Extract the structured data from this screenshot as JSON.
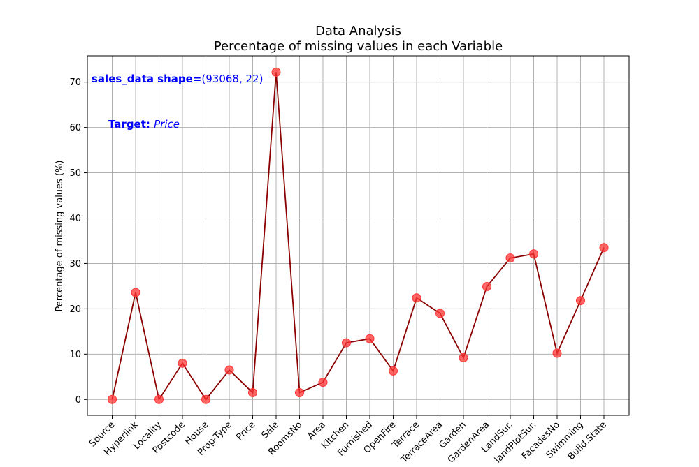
{
  "chart_data": {
    "type": "line",
    "title": "Data Analysis",
    "subtitle": "Percentage of missing values in each Variable",
    "xlabel": "",
    "ylabel": "Percentage of missing values (%)",
    "ylim": [
      -3.5,
      75.8
    ],
    "yticks": [
      0,
      10,
      20,
      30,
      40,
      50,
      60,
      70
    ],
    "grid": true,
    "categories": [
      "Source",
      "Hyperlink",
      "Locality",
      "Postcode",
      "House",
      "Prop-Type",
      "Price",
      "Sale",
      "RoomsNo",
      "Area",
      "Kitchen",
      "Furnished",
      "OpenFire",
      "Terrace",
      "TerraceArea",
      "Garden",
      "GardenArea",
      "LandSur.",
      "landPlotSur.",
      "FacadesNo",
      "Swimming",
      "Build.State"
    ],
    "series": [
      {
        "values": [
          0,
          23.6,
          0,
          8.0,
          0,
          6.5,
          1.5,
          72.2,
          1.5,
          3.8,
          12.5,
          13.4,
          6.3,
          22.4,
          19.0,
          9.2,
          24.9,
          31.2,
          32.1,
          10.2,
          21.8,
          33.5
        ]
      }
    ],
    "colors": {
      "line": "#8b0000",
      "marker": "#ff3333",
      "grid": "#b0b0b0",
      "annotation": "#0000ff"
    },
    "annotations": [
      {
        "bold": "sales_data shape=",
        "normal": "(93068, 22)"
      },
      {
        "bold": "Target: ",
        "italic": "Price"
      }
    ]
  }
}
